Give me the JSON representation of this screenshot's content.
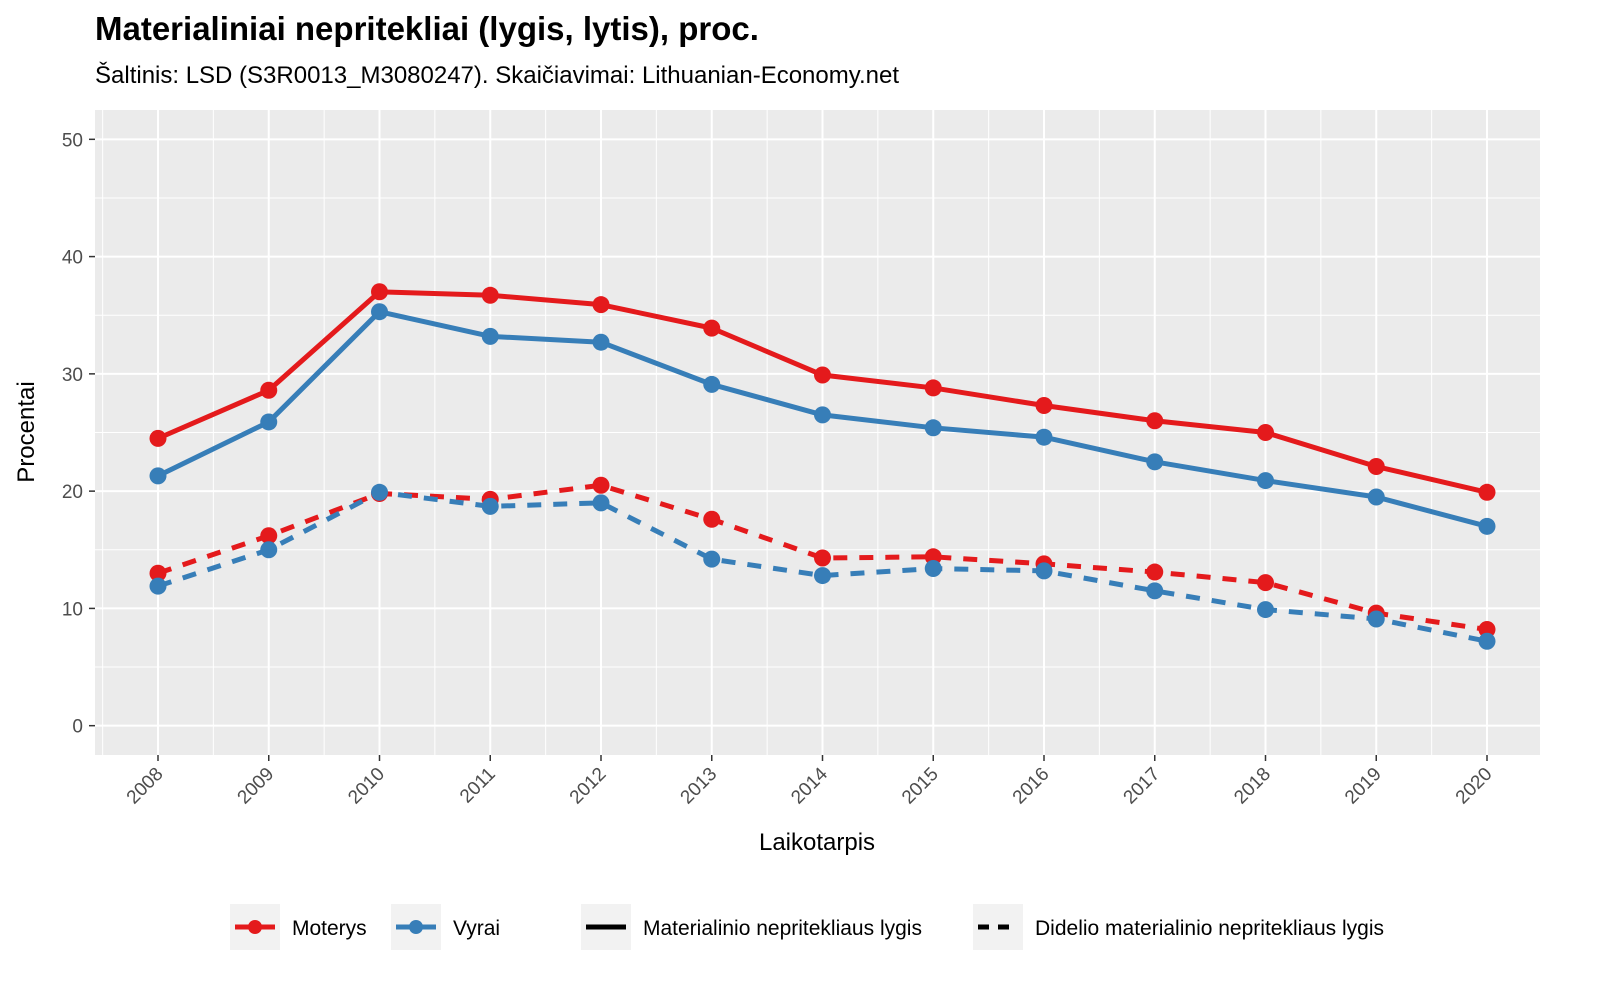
{
  "chart_data": {
    "type": "line",
    "title": "Materialiniai nepritekliai (lygis, lytis), proc.",
    "subtitle": "Šaltinis: LSD (S3R0013_M3080247). Skaičiavimai: Lithuanian-Economy.net",
    "xlabel": "Laikotarpis",
    "ylabel": "Procentai",
    "x": [
      "2008",
      "2009",
      "2010",
      "2011",
      "2012",
      "2013",
      "2014",
      "2015",
      "2016",
      "2017",
      "2018",
      "2019",
      "2020"
    ],
    "ylim": [
      -2.5,
      52.5
    ],
    "yticks": [
      0,
      10,
      20,
      30,
      40,
      50
    ],
    "grid": true,
    "legend_position": "bottom",
    "colors": {
      "Moterys": "#e41a1c",
      "Vyrai": "#377eb8",
      "panel": "#ebebeb",
      "grid": "#ffffff",
      "axis_text": "#4d4d4d"
    },
    "legend": {
      "colour": [
        "Moterys",
        "Vyrai"
      ],
      "linetype": [
        "Materialinio nepritekliaus lygis",
        "Didelio materialinio nepritekliaus lygis"
      ]
    },
    "series": [
      {
        "name": "Moterys",
        "group": "Materialinio nepritekliaus lygis",
        "colour": "Moterys",
        "dash": "solid",
        "values": [
          24.5,
          28.6,
          37.0,
          36.7,
          35.9,
          33.9,
          29.9,
          28.8,
          27.3,
          26.0,
          25.0,
          22.1,
          19.9
        ]
      },
      {
        "name": "Vyrai",
        "group": "Materialinio nepritekliaus lygis",
        "colour": "Vyrai",
        "dash": "solid",
        "values": [
          21.3,
          25.9,
          35.3,
          33.2,
          32.7,
          29.1,
          26.5,
          25.4,
          24.6,
          22.5,
          20.9,
          19.5,
          17.0
        ]
      },
      {
        "name": "Moterys",
        "group": "Didelio materialinio nepritekliaus lygis",
        "colour": "Moterys",
        "dash": "dashed",
        "values": [
          13.0,
          16.2,
          19.8,
          19.3,
          20.5,
          17.6,
          14.3,
          14.4,
          13.8,
          13.1,
          12.2,
          9.6,
          8.2
        ]
      },
      {
        "name": "Vyrai",
        "group": "Didelio materialinio nepritekliaus lygis",
        "colour": "Vyrai",
        "dash": "dashed",
        "values": [
          11.9,
          15.0,
          19.9,
          18.7,
          19.0,
          14.2,
          12.8,
          13.4,
          13.2,
          11.5,
          9.9,
          9.1,
          7.2
        ]
      }
    ]
  }
}
